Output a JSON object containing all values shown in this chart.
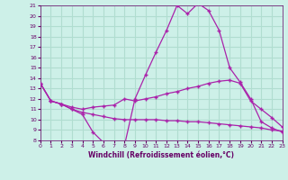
{
  "title": "",
  "xlabel": "Windchill (Refroidissement éolien,°C)",
  "ylabel": "",
  "background_color": "#cdf0e8",
  "grid_color": "#b0ddd0",
  "line_color": "#aa22aa",
  "xmin": 0,
  "xmax": 23,
  "ymin": 8,
  "ymax": 21,
  "yticks": [
    8,
    9,
    10,
    11,
    12,
    13,
    14,
    15,
    16,
    17,
    18,
    19,
    20,
    21
  ],
  "xticks": [
    0,
    1,
    2,
    3,
    4,
    5,
    6,
    7,
    8,
    9,
    10,
    11,
    12,
    13,
    14,
    15,
    16,
    17,
    18,
    19,
    20,
    21,
    22,
    23
  ],
  "series1_x": [
    0,
    1,
    2,
    3,
    4,
    5,
    6,
    7,
    8,
    9,
    10,
    11,
    12,
    13,
    14,
    15,
    16,
    17,
    18,
    19,
    20,
    21,
    22,
    23
  ],
  "series1_y": [
    13.5,
    11.8,
    11.5,
    11.0,
    10.5,
    8.8,
    7.8,
    7.6,
    7.5,
    12.0,
    14.3,
    16.5,
    18.6,
    21.0,
    20.2,
    21.2,
    20.5,
    18.6,
    15.0,
    13.6,
    12.0,
    9.8,
    9.2,
    8.8
  ],
  "series2_x": [
    0,
    1,
    2,
    3,
    4,
    5,
    6,
    7,
    8,
    9,
    10,
    11,
    12,
    13,
    14,
    15,
    16,
    17,
    18,
    19,
    20,
    21,
    22,
    23
  ],
  "series2_y": [
    13.5,
    11.8,
    11.5,
    11.2,
    11.0,
    11.2,
    11.3,
    11.4,
    12.0,
    11.8,
    12.0,
    12.2,
    12.5,
    12.7,
    13.0,
    13.2,
    13.5,
    13.7,
    13.8,
    13.5,
    11.8,
    11.0,
    10.2,
    9.3
  ],
  "series3_x": [
    0,
    1,
    2,
    3,
    4,
    5,
    6,
    7,
    8,
    9,
    10,
    11,
    12,
    13,
    14,
    15,
    16,
    17,
    18,
    19,
    20,
    21,
    22,
    23
  ],
  "series3_y": [
    13.5,
    11.8,
    11.5,
    11.0,
    10.7,
    10.5,
    10.3,
    10.1,
    10.0,
    10.0,
    10.0,
    10.0,
    9.9,
    9.9,
    9.8,
    9.8,
    9.7,
    9.6,
    9.5,
    9.4,
    9.3,
    9.2,
    9.0,
    8.9
  ]
}
